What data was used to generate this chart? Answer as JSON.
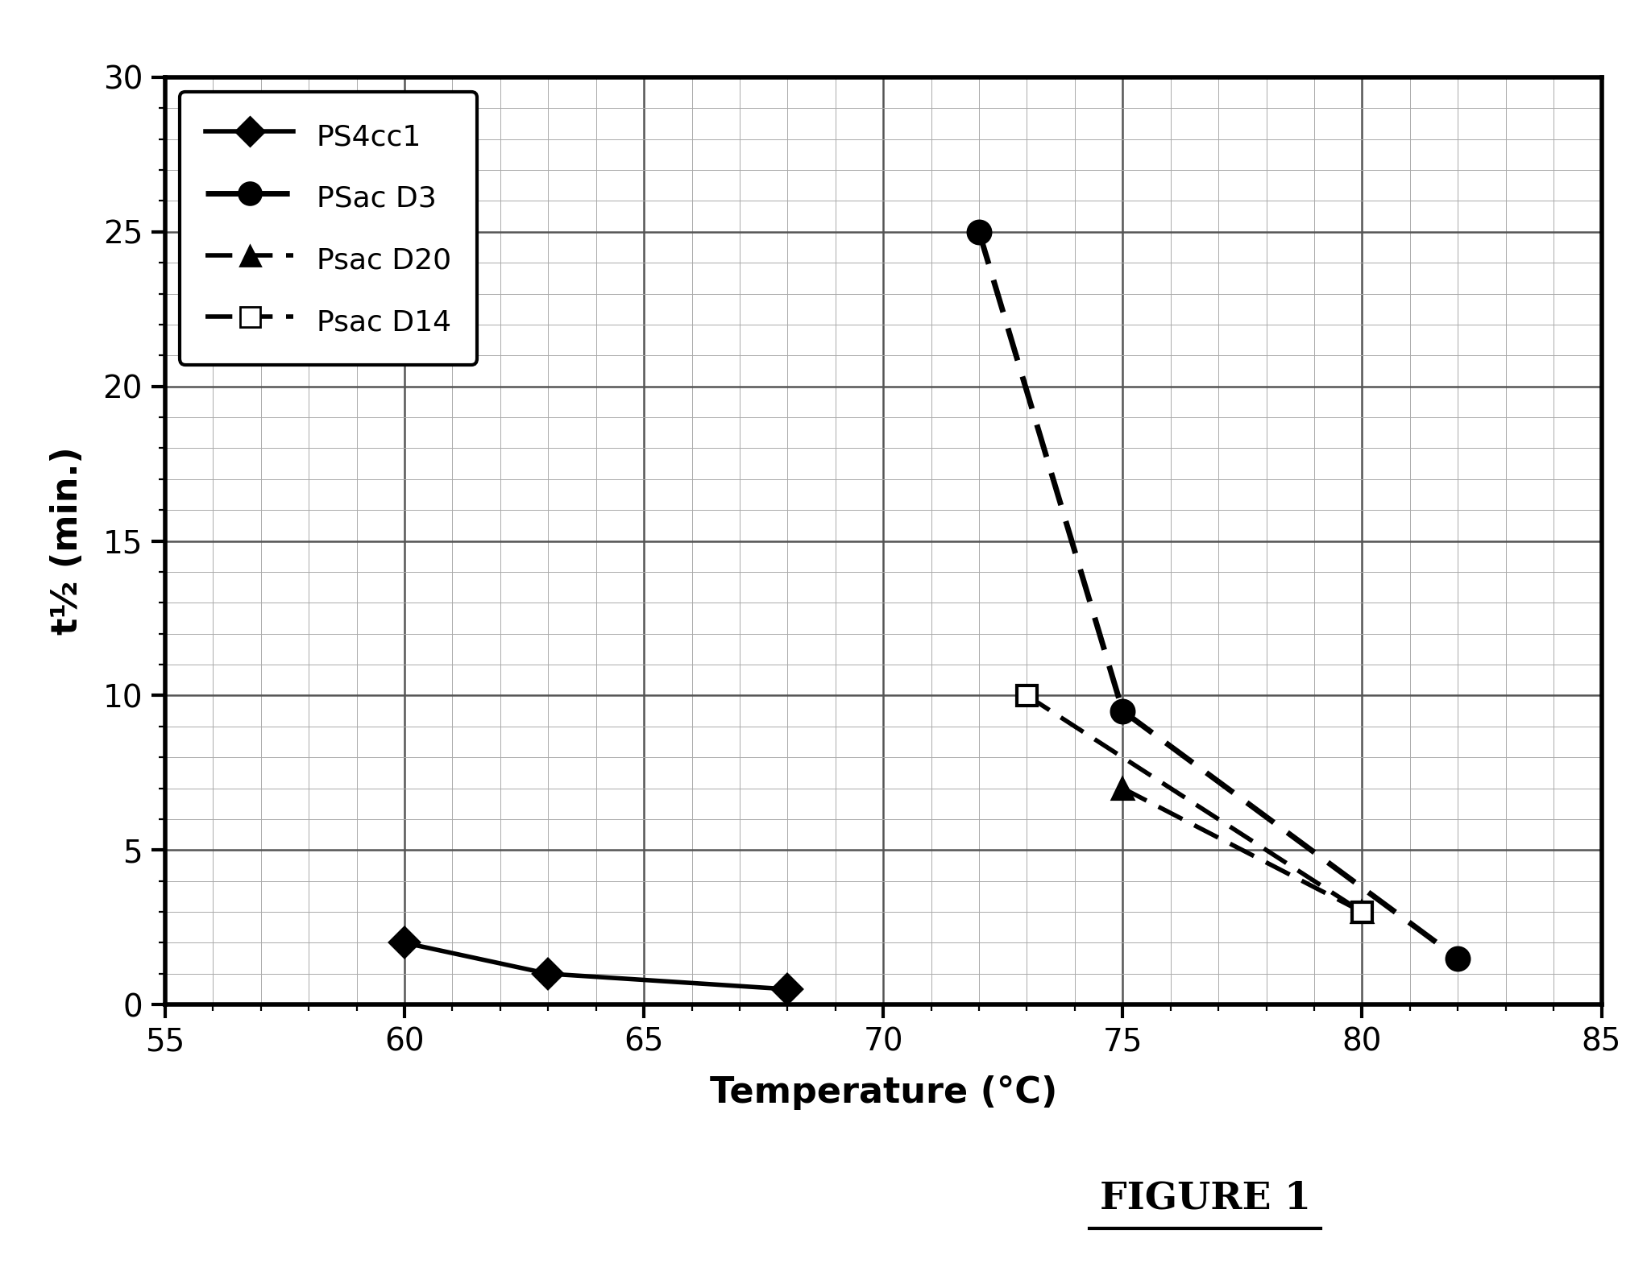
{
  "xlabel": "Temperature (°C)",
  "ylabel": "t½ (min.)",
  "xlim": [
    55,
    85
  ],
  "ylim": [
    0,
    30
  ],
  "xticks": [
    55,
    60,
    65,
    70,
    75,
    80,
    85
  ],
  "yticks": [
    0,
    5,
    10,
    15,
    20,
    25,
    30
  ],
  "series": [
    {
      "label": "PS4cc1",
      "x": [
        60,
        63,
        68
      ],
      "y": [
        2,
        1,
        0.5
      ],
      "color": "#000000",
      "linestyle": "solid",
      "marker": "D",
      "markersize": 9,
      "linewidth": 2.0,
      "markerfacecolor": "#000000"
    },
    {
      "label": "PSac D3",
      "x": [
        72,
        75,
        82
      ],
      "y": [
        25,
        9.5,
        1.5
      ],
      "color": "#000000",
      "linestyle": "dashed",
      "marker": "o",
      "markersize": 10,
      "linewidth": 2.5,
      "markerfacecolor": "#000000"
    },
    {
      "label": "Psac D20",
      "x": [
        75,
        80
      ],
      "y": [
        7,
        3
      ],
      "color": "#000000",
      "linestyle": "dashed",
      "marker": "^",
      "markersize": 9,
      "linewidth": 2.0,
      "markerfacecolor": "#000000"
    },
    {
      "label": "Psac D14",
      "x": [
        73,
        80
      ],
      "y": [
        10,
        3
      ],
      "color": "#000000",
      "linestyle": "dashed",
      "marker": "s",
      "markersize": 9,
      "linewidth": 2.0,
      "markerfacecolor": "#ffffff"
    }
  ],
  "figure_label": "FIGURE 1",
  "background_color": "#ffffff",
  "grid_major_color": "#555555",
  "grid_minor_color": "#aaaaaa"
}
